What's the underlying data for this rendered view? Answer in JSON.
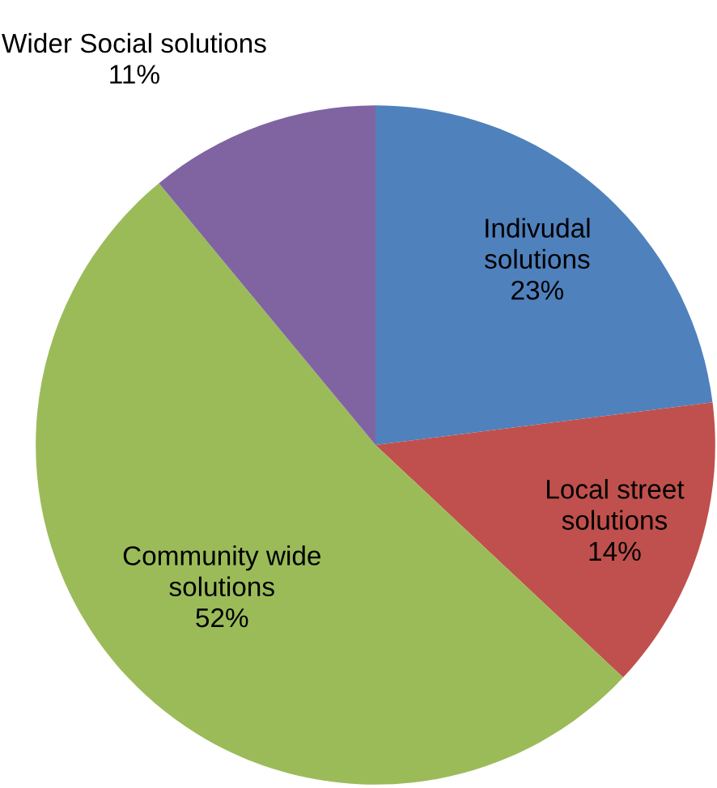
{
  "chart_data": {
    "type": "pie",
    "categories": [
      "Indivudal solutions",
      "Local street solutions",
      "Community wide solutions",
      "Wider Social solutions"
    ],
    "values": [
      23,
      14,
      52,
      11
    ],
    "colors": [
      "#4f81bd",
      "#c0504d",
      "#9bbb59",
      "#8064a2"
    ],
    "value_labels": [
      "23%",
      "14%",
      "52%",
      "11%"
    ],
    "legend": false
  }
}
